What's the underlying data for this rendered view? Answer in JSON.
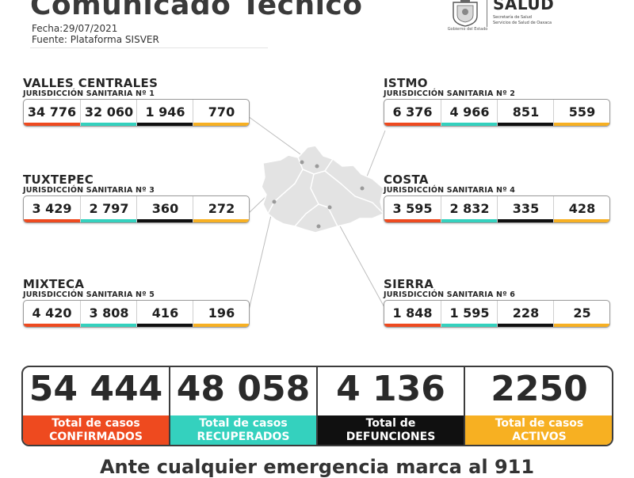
{
  "header": {
    "title": "Comunicado Técnico",
    "date_line": "Fecha:29/07/2021",
    "source_line": "Fuente: Plataforma SISVER"
  },
  "logos": {
    "gov_text": "Gobierno del Estado",
    "salud_word": "SALUD",
    "salud_sub1": "Secretaría de Salud",
    "salud_sub2": "Servicios de Salud de Oaxaca"
  },
  "colors": {
    "confirmed": "#ee4a1f",
    "recovered": "#34d1be",
    "deaths": "#101010",
    "active": "#f7b022",
    "map_fill": "#e3e3e3",
    "map_stroke": "#ffffff",
    "leader_line": "#bdbdbd"
  },
  "regions": [
    {
      "name": "VALLES CENTRALES",
      "jurisdiction": "JURISDICCIÓN SANITARIA Nº 1",
      "values": [
        "34 776",
        "32 060",
        "1 946",
        "770"
      ]
    },
    {
      "name": "ISTMO",
      "jurisdiction": "JURISDICCIÓN SANITARIA Nº 2",
      "values": [
        "6 376",
        "4 966",
        "851",
        "559"
      ]
    },
    {
      "name": "TUXTEPEC",
      "jurisdiction": "JURISDICCIÓN SANITARIA Nº 3",
      "values": [
        "3 429",
        "2 797",
        "360",
        "272"
      ]
    },
    {
      "name": "COSTA",
      "jurisdiction": "JURISDICCIÓN SANITARIA Nº 4",
      "values": [
        "3 595",
        "2 832",
        "335",
        "428"
      ]
    },
    {
      "name": "MIXTECA",
      "jurisdiction": "JURISDICCIÓN SANITARIA Nº 5",
      "values": [
        "4 420",
        "3 808",
        "416",
        "196"
      ]
    },
    {
      "name": "SIERRA",
      "jurisdiction": "JURISDICCIÓN SANITARIA Nº 6",
      "values": [
        "1 848",
        "1 595",
        "228",
        "25"
      ]
    }
  ],
  "totals": [
    {
      "value": "54 444",
      "line1": "Total de casos",
      "line2": "CONFIRMADOS"
    },
    {
      "value": "48 058",
      "line1": "Total de casos",
      "line2": "RECUPERADOS"
    },
    {
      "value": "4 136",
      "line1": "Total de",
      "line2": "DEFUNCIONES"
    },
    {
      "value": "2250",
      "line1": "Total de casos",
      "line2": "ACTIVOS"
    }
  ],
  "footer": {
    "text": "Ante cualquier emergencia marca al 911"
  }
}
